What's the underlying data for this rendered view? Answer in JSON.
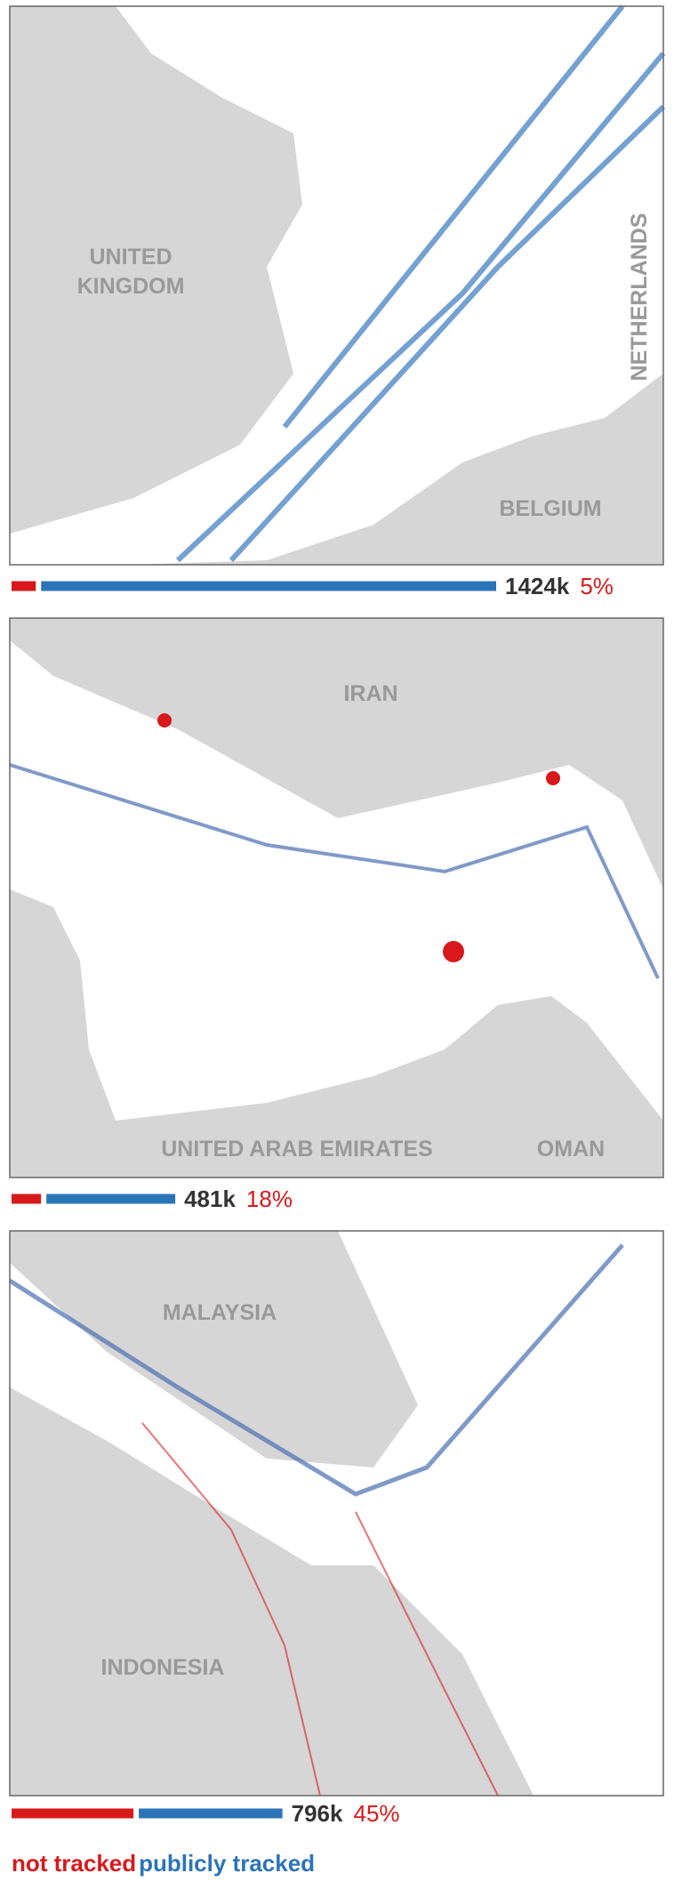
{
  "panels": [
    {
      "map_labels": [
        "UNITED",
        "KINGDOM",
        "NETHERLANDS",
        "BELGIUM"
      ],
      "total": 1424,
      "total_label": "1424k",
      "not_tracked_pct": 5,
      "pct_label": "5%"
    },
    {
      "map_labels": [
        "IRAN",
        "UNITED ARAB EMIRATES",
        "OMAN"
      ],
      "total": 481,
      "total_label": "481k",
      "not_tracked_pct": 18,
      "pct_label": "18%"
    },
    {
      "map_labels": [
        "MALAYSIA",
        "INDONESIA"
      ],
      "total": 796,
      "total_label": "796k",
      "not_tracked_pct": 45,
      "pct_label": "45%"
    }
  ],
  "legend": {
    "not_tracked": "not tracked",
    "publicly_tracked": "publicly tracked"
  }
}
